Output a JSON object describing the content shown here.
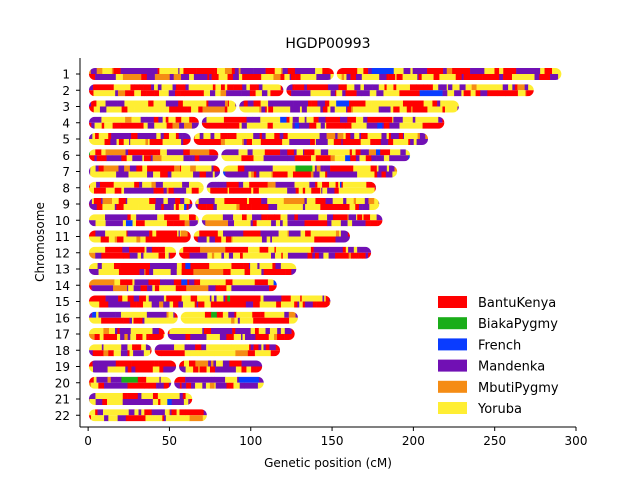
{
  "chart_data": {
    "type": "karyogram",
    "title": "HGDP00993",
    "xlabel": "Genetic position (cM)",
    "ylabel": "Chromosome",
    "xlim": [
      -5,
      300
    ],
    "x_ticks": [
      0,
      50,
      100,
      150,
      200,
      250,
      300
    ],
    "legend_position": "lower-right",
    "legend": [
      {
        "name": "BantuKenya",
        "color": "#ff0000"
      },
      {
        "name": "BiakaPygmy",
        "color": "#1aad19"
      },
      {
        "name": "French",
        "color": "#0a3cff"
      },
      {
        "name": "Mandenka",
        "color": "#7110b4"
      },
      {
        "name": "MbutiPygmy",
        "color": "#f58c14"
      },
      {
        "name": "Yoruba",
        "color": "#ffee33"
      }
    ],
    "chromosomes": [
      {
        "label": "1",
        "length": 291,
        "centromere": 152
      },
      {
        "label": "2",
        "length": 274,
        "centromere": 121
      },
      {
        "label": "3",
        "length": 228,
        "centromere": 92
      },
      {
        "label": "4",
        "length": 219,
        "centromere": 69
      },
      {
        "label": "5",
        "length": 209,
        "centromere": 64
      },
      {
        "label": "6",
        "length": 198,
        "centromere": 81
      },
      {
        "label": "7",
        "length": 190,
        "centromere": 82
      },
      {
        "label": "8",
        "length": 177,
        "centromere": 72
      },
      {
        "label": "9",
        "length": 179,
        "centromere": 65
      },
      {
        "label": "10",
        "length": 181,
        "centromere": 69
      },
      {
        "label": "11",
        "length": 161,
        "centromere": 64
      },
      {
        "label": "12",
        "length": 174,
        "centromere": 55
      },
      {
        "label": "13",
        "length": 128,
        "centromere": 2
      },
      {
        "label": "14",
        "length": 116,
        "centromere": 2
      },
      {
        "label": "15",
        "length": 149,
        "centromere": 2
      },
      {
        "label": "16",
        "length": 129,
        "centromere": 56
      },
      {
        "label": "17",
        "length": 127,
        "centromere": 48
      },
      {
        "label": "18",
        "length": 118,
        "centromere": 40
      },
      {
        "label": "19",
        "length": 107,
        "centromere": 55
      },
      {
        "label": "20",
        "length": 108,
        "centromere": 52
      },
      {
        "label": "21",
        "length": 64,
        "centromere": 2
      },
      {
        "label": "22",
        "length": 73,
        "centromere": 2
      }
    ]
  }
}
